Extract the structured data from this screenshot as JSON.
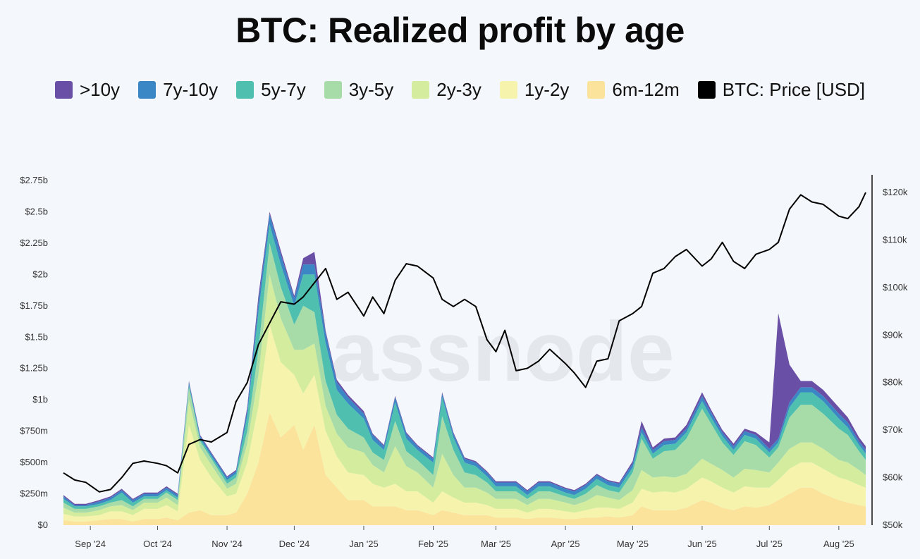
{
  "chart_data": {
    "type": "area",
    "title": "BTC: Realized profit by age",
    "watermark": "glassnode",
    "stacked": true,
    "x": [
      "2024-08-20",
      "2024-08-25",
      "2024-08-30",
      "2024-09-05",
      "2024-09-10",
      "2024-09-15",
      "2024-09-20",
      "2024-09-25",
      "2024-10-01",
      "2024-10-05",
      "2024-10-10",
      "2024-10-15",
      "2024-10-20",
      "2024-10-25",
      "2024-11-01",
      "2024-11-05",
      "2024-11-10",
      "2024-11-15",
      "2024-11-20",
      "2024-11-25",
      "2024-12-01",
      "2024-12-05",
      "2024-12-10",
      "2024-12-15",
      "2024-12-20",
      "2024-12-25",
      "2025-01-01",
      "2025-01-05",
      "2025-01-10",
      "2025-01-15",
      "2025-01-20",
      "2025-01-25",
      "2025-02-01",
      "2025-02-05",
      "2025-02-10",
      "2025-02-15",
      "2025-02-20",
      "2025-02-25",
      "2025-03-01",
      "2025-03-05",
      "2025-03-10",
      "2025-03-15",
      "2025-03-20",
      "2025-03-25",
      "2025-04-01",
      "2025-04-05",
      "2025-04-10",
      "2025-04-15",
      "2025-04-20",
      "2025-04-25",
      "2025-05-01",
      "2025-05-05",
      "2025-05-10",
      "2025-05-15",
      "2025-05-20",
      "2025-05-25",
      "2025-06-01",
      "2025-06-05",
      "2025-06-10",
      "2025-06-15",
      "2025-06-20",
      "2025-06-25",
      "2025-07-01",
      "2025-07-05",
      "2025-07-10",
      "2025-07-15",
      "2025-07-20",
      "2025-07-25",
      "2025-08-01",
      "2025-08-05",
      "2025-08-10",
      "2025-08-13"
    ],
    "series": [
      {
        "name": "6m-12m",
        "color": "#fbe39c",
        "values": [
          0.04,
          0.03,
          0.03,
          0.04,
          0.05,
          0.05,
          0.03,
          0.05,
          0.05,
          0.06,
          0.04,
          0.1,
          0.12,
          0.08,
          0.08,
          0.1,
          0.25,
          0.5,
          0.9,
          0.7,
          0.8,
          0.6,
          0.8,
          0.4,
          0.3,
          0.2,
          0.2,
          0.15,
          0.15,
          0.15,
          0.12,
          0.12,
          0.08,
          0.12,
          0.1,
          0.08,
          0.08,
          0.08,
          0.06,
          0.06,
          0.06,
          0.05,
          0.06,
          0.06,
          0.05,
          0.05,
          0.06,
          0.06,
          0.07,
          0.06,
          0.08,
          0.15,
          0.12,
          0.12,
          0.12,
          0.14,
          0.2,
          0.18,
          0.14,
          0.12,
          0.15,
          0.14,
          0.16,
          0.2,
          0.25,
          0.3,
          0.3,
          0.25,
          0.2,
          0.18,
          0.16,
          0.15
        ]
      },
      {
        "name": "1y-2y",
        "color": "#f6f4ac",
        "values": [
          0.05,
          0.04,
          0.04,
          0.04,
          0.06,
          0.06,
          0.05,
          0.08,
          0.08,
          0.1,
          0.07,
          0.7,
          0.4,
          0.3,
          0.15,
          0.15,
          0.25,
          0.45,
          0.7,
          0.6,
          0.4,
          0.45,
          0.4,
          0.35,
          0.25,
          0.22,
          0.2,
          0.18,
          0.15,
          0.18,
          0.15,
          0.15,
          0.1,
          0.15,
          0.12,
          0.1,
          0.1,
          0.08,
          0.07,
          0.07,
          0.07,
          0.05,
          0.07,
          0.07,
          0.06,
          0.05,
          0.06,
          0.08,
          0.07,
          0.07,
          0.1,
          0.14,
          0.14,
          0.15,
          0.14,
          0.15,
          0.18,
          0.17,
          0.16,
          0.14,
          0.16,
          0.16,
          0.14,
          0.16,
          0.2,
          0.2,
          0.2,
          0.2,
          0.18,
          0.18,
          0.16,
          0.15
        ]
      },
      {
        "name": "2y-3y",
        "color": "#d4ec9d",
        "values": [
          0.05,
          0.03,
          0.03,
          0.04,
          0.04,
          0.05,
          0.04,
          0.05,
          0.05,
          0.06,
          0.05,
          0.2,
          0.1,
          0.1,
          0.06,
          0.08,
          0.15,
          0.25,
          0.4,
          0.35,
          0.2,
          0.35,
          0.25,
          0.2,
          0.18,
          0.2,
          0.18,
          0.15,
          0.12,
          0.3,
          0.2,
          0.15,
          0.12,
          0.3,
          0.18,
          0.12,
          0.12,
          0.1,
          0.08,
          0.08,
          0.08,
          0.06,
          0.08,
          0.08,
          0.07,
          0.06,
          0.07,
          0.1,
          0.08,
          0.07,
          0.1,
          0.15,
          0.12,
          0.12,
          0.12,
          0.12,
          0.15,
          0.14,
          0.14,
          0.12,
          0.14,
          0.14,
          0.12,
          0.14,
          0.16,
          0.16,
          0.16,
          0.16,
          0.14,
          0.14,
          0.12,
          0.1
        ]
      },
      {
        "name": "3y-5y",
        "color": "#a7dca8",
        "values": [
          0.04,
          0.03,
          0.03,
          0.03,
          0.03,
          0.04,
          0.03,
          0.03,
          0.03,
          0.04,
          0.04,
          0.1,
          0.05,
          0.05,
          0.04,
          0.05,
          0.1,
          0.2,
          0.25,
          0.25,
          0.2,
          0.35,
          0.25,
          0.2,
          0.15,
          0.15,
          0.12,
          0.1,
          0.1,
          0.2,
          0.12,
          0.1,
          0.1,
          0.3,
          0.2,
          0.12,
          0.1,
          0.08,
          0.06,
          0.06,
          0.06,
          0.05,
          0.06,
          0.06,
          0.05,
          0.05,
          0.06,
          0.08,
          0.06,
          0.06,
          0.14,
          0.25,
          0.15,
          0.2,
          0.22,
          0.28,
          0.4,
          0.32,
          0.22,
          0.18,
          0.22,
          0.2,
          0.12,
          0.12,
          0.25,
          0.3,
          0.3,
          0.28,
          0.25,
          0.22,
          0.15,
          0.12
        ]
      },
      {
        "name": "5y-7y",
        "color": "#4fbfb0",
        "values": [
          0.03,
          0.02,
          0.02,
          0.02,
          0.02,
          0.06,
          0.03,
          0.02,
          0.02,
          0.02,
          0.02,
          0.02,
          0.02,
          0.02,
          0.03,
          0.03,
          0.12,
          0.3,
          0.15,
          0.18,
          0.15,
          0.25,
          0.3,
          0.3,
          0.2,
          0.2,
          0.15,
          0.1,
          0.08,
          0.15,
          0.1,
          0.08,
          0.1,
          0.15,
          0.1,
          0.08,
          0.07,
          0.05,
          0.04,
          0.04,
          0.04,
          0.03,
          0.04,
          0.04,
          0.03,
          0.03,
          0.04,
          0.05,
          0.04,
          0.04,
          0.04,
          0.05,
          0.04,
          0.05,
          0.05,
          0.05,
          0.06,
          0.05,
          0.05,
          0.04,
          0.05,
          0.05,
          0.04,
          0.04,
          0.08,
          0.1,
          0.1,
          0.1,
          0.08,
          0.06,
          0.05,
          0.05
        ]
      },
      {
        "name": "7y-10y",
        "color": "#3b86c4",
        "values": [
          0.02,
          0.01,
          0.01,
          0.02,
          0.02,
          0.02,
          0.02,
          0.02,
          0.02,
          0.02,
          0.02,
          0.02,
          0.02,
          0.02,
          0.02,
          0.02,
          0.05,
          0.08,
          0.08,
          0.08,
          0.06,
          0.08,
          0.08,
          0.08,
          0.06,
          0.05,
          0.04,
          0.04,
          0.03,
          0.04,
          0.04,
          0.03,
          0.03,
          0.03,
          0.03,
          0.03,
          0.03,
          0.03,
          0.03,
          0.03,
          0.03,
          0.03,
          0.03,
          0.03,
          0.03,
          0.03,
          0.03,
          0.03,
          0.03,
          0.03,
          0.03,
          0.04,
          0.03,
          0.03,
          0.03,
          0.03,
          0.04,
          0.04,
          0.03,
          0.03,
          0.03,
          0.03,
          0.03,
          0.03,
          0.04,
          0.04,
          0.04,
          0.04,
          0.04,
          0.04,
          0.03,
          0.03
        ]
      },
      {
        "name": ">10y",
        "color": "#6a4fa6",
        "values": [
          0.01,
          0.01,
          0.01,
          0.01,
          0.01,
          0.01,
          0.01,
          0.01,
          0.01,
          0.01,
          0.01,
          0.01,
          0.01,
          0.01,
          0.01,
          0.01,
          0.02,
          0.05,
          0.02,
          0.03,
          0.02,
          0.05,
          0.1,
          0.02,
          0.02,
          0.02,
          0.02,
          0.01,
          0.01,
          0.01,
          0.01,
          0.01,
          0.01,
          0.01,
          0.01,
          0.01,
          0.01,
          0.01,
          0.01,
          0.01,
          0.01,
          0.01,
          0.01,
          0.01,
          0.01,
          0.01,
          0.01,
          0.01,
          0.01,
          0.01,
          0.02,
          0.05,
          0.02,
          0.02,
          0.02,
          0.03,
          0.03,
          0.02,
          0.02,
          0.02,
          0.02,
          0.02,
          0.05,
          1.0,
          0.3,
          0.05,
          0.05,
          0.05,
          0.05,
          0.04,
          0.03,
          0.03
        ]
      }
    ],
    "price": {
      "name": "BTC: Price [USD]",
      "color": "#000000",
      "values": [
        61000,
        59500,
        59000,
        57000,
        57500,
        60000,
        63000,
        63500,
        63000,
        62500,
        61000,
        67000,
        68000,
        67500,
        69500,
        76000,
        80000,
        88000,
        92500,
        97000,
        96500,
        98000,
        101000,
        104000,
        97500,
        99000,
        94000,
        98000,
        94500,
        101500,
        105000,
        104500,
        102000,
        97500,
        96000,
        97500,
        96000,
        89000,
        86500,
        91000,
        82500,
        83000,
        84500,
        87000,
        84000,
        82000,
        79000,
        84500,
        85000,
        93000,
        94500,
        96000,
        103000,
        104000,
        106500,
        108000,
        104500,
        106000,
        109500,
        105500,
        104000,
        107000,
        108000,
        109500,
        116500,
        119500,
        118000,
        117500,
        115000,
        114500,
        117000,
        120000
      ]
    },
    "legend": [
      ">10y",
      "7y-10y",
      "5y-7y",
      "3y-5y",
      "2y-3y",
      "1y-2y",
      "6m-12m",
      "BTC: Price [USD]"
    ],
    "legend_colors": [
      "#6a4fa6",
      "#3b86c4",
      "#4fbfb0",
      "#a7dca8",
      "#d4ec9d",
      "#f6f4ac",
      "#fbe39c",
      "#000000"
    ],
    "x_tick_labels": [
      {
        "label": "Sep '24",
        "date": "2024-09-01"
      },
      {
        "label": "Oct '24",
        "date": "2024-10-01"
      },
      {
        "label": "Nov '24",
        "date": "2024-11-01"
      },
      {
        "label": "Dec '24",
        "date": "2024-12-01"
      },
      {
        "label": "Jan '25",
        "date": "2025-01-01"
      },
      {
        "label": "Feb '25",
        "date": "2025-02-01"
      },
      {
        "label": "Mar '25",
        "date": "2025-03-01"
      },
      {
        "label": "Apr '25",
        "date": "2025-04-01"
      },
      {
        "label": "May '25",
        "date": "2025-05-01"
      },
      {
        "label": "Jun '25",
        "date": "2025-06-01"
      },
      {
        "label": "Jul '25",
        "date": "2025-07-01"
      },
      {
        "label": "Aug '25",
        "date": "2025-08-01"
      }
    ],
    "y_left": {
      "ylim": [
        0,
        2.75
      ],
      "unit": "USD billions",
      "ticks": [
        {
          "label": "$0",
          "value": 0
        },
        {
          "label": "$250m",
          "value": 0.25
        },
        {
          "label": "$500m",
          "value": 0.5
        },
        {
          "label": "$750m",
          "value": 0.75
        },
        {
          "label": "$1b",
          "value": 1
        },
        {
          "label": "$1.25b",
          "value": 1.25
        },
        {
          "label": "$1.5b",
          "value": 1.5
        },
        {
          "label": "$1.75b",
          "value": 1.75
        },
        {
          "label": "$2b",
          "value": 2
        },
        {
          "label": "$2.25b",
          "value": 2.25
        },
        {
          "label": "$2.5b",
          "value": 2.5
        },
        {
          "label": "$2.75b",
          "value": 2.75
        }
      ]
    },
    "y_right": {
      "ylim": [
        50000,
        120000
      ],
      "ticks": [
        {
          "label": "$50k",
          "value": 50000
        },
        {
          "label": "$60k",
          "value": 60000
        },
        {
          "label": "$70k",
          "value": 70000
        },
        {
          "label": "$80k",
          "value": 80000
        },
        {
          "label": "$90k",
          "value": 90000
        },
        {
          "label": "$100k",
          "value": 100000
        },
        {
          "label": "$110k",
          "value": 110000
        },
        {
          "label": "$120k",
          "value": 120000
        }
      ]
    },
    "grid": false
  }
}
